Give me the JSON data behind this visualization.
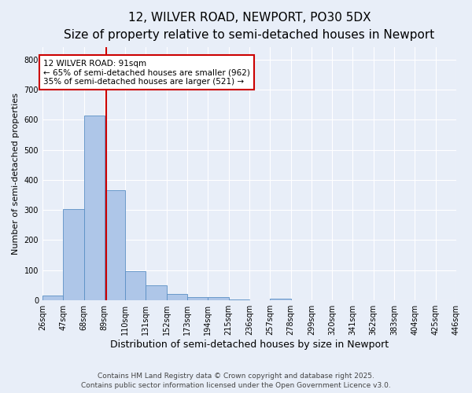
{
  "title": "12, WILVER ROAD, NEWPORT, PO30 5DX",
  "subtitle": "Size of property relative to semi-detached houses in Newport",
  "xlabel": "Distribution of semi-detached houses by size in Newport",
  "ylabel": "Number of semi-detached properties",
  "bin_labels": [
    "26sqm",
    "47sqm",
    "68sqm",
    "89sqm",
    "110sqm",
    "131sqm",
    "152sqm",
    "173sqm",
    "194sqm",
    "215sqm",
    "236sqm",
    "257sqm",
    "278sqm",
    "299sqm",
    "320sqm",
    "341sqm",
    "362sqm",
    "383sqm",
    "404sqm",
    "425sqm",
    "446sqm"
  ],
  "bin_edges": [
    26,
    47,
    68,
    89,
    110,
    131,
    152,
    173,
    194,
    215,
    236,
    257,
    278,
    299,
    320,
    341,
    362,
    383,
    404,
    425,
    446
  ],
  "bar_heights": [
    15,
    302,
    615,
    365,
    98,
    50,
    22,
    10,
    10,
    2,
    0,
    5,
    0,
    0,
    0,
    0,
    0,
    0,
    0,
    0
  ],
  "bar_color": "#aec6e8",
  "bar_edge_color": "#5a8fc4",
  "property_size": 91,
  "red_line_color": "#cc0000",
  "annotation_line1": "12 WILVER ROAD: 91sqm",
  "annotation_line2": "← 65% of semi-detached houses are smaller (962)",
  "annotation_line3": "35% of semi-detached houses are larger (521) →",
  "annotation_box_color": "#ffffff",
  "annotation_box_edge_color": "#cc0000",
  "ylim": [
    0,
    840
  ],
  "yticks": [
    0,
    100,
    200,
    300,
    400,
    500,
    600,
    700,
    800
  ],
  "footer_line1": "Contains HM Land Registry data © Crown copyright and database right 2025.",
  "footer_line2": "Contains public sector information licensed under the Open Government Licence v3.0.",
  "bg_color": "#e8eef8",
  "plot_bg_color": "#e8eef8",
  "title_fontsize": 11,
  "subtitle_fontsize": 9,
  "axis_label_fontsize": 9,
  "tick_fontsize": 7,
  "annotation_fontsize": 7.5,
  "footer_fontsize": 6.5,
  "ylabel_fontsize": 8
}
